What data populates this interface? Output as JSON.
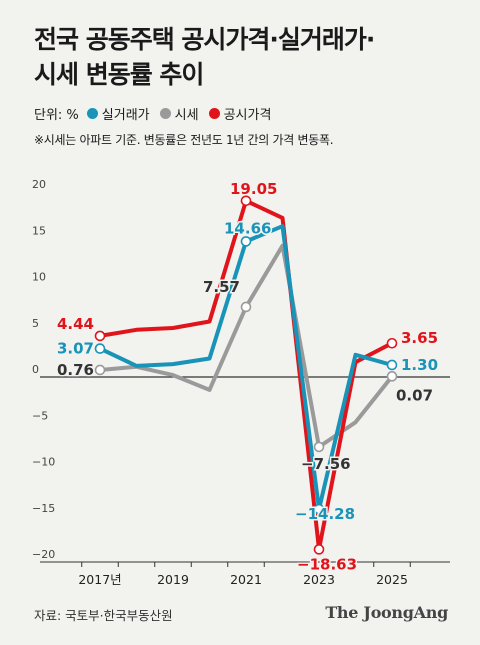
{
  "title_line1": "전국 공동주택 공시가격·실거래가·",
  "title_line2": "시세 변동률 추이",
  "legend": {
    "unit": "단위: %",
    "items": [
      {
        "label": "실거래가",
        "color": "#1a93b8"
      },
      {
        "label": "시세",
        "color": "#9a9a9a"
      },
      {
        "label": "공시가격",
        "color": "#e0151b"
      }
    ]
  },
  "note": "※시세는 아파트 기준. 변동률은 전년도 1년 간의 가격 변동폭.",
  "source": "자료: 국토부·한국부동산원",
  "brand": "The JoongAng",
  "chart_data": {
    "type": "line",
    "ylim": [
      -20,
      20
    ],
    "yticks": [
      "20",
      "15",
      "10",
      "5",
      "0",
      "−5",
      "−10",
      "−15",
      "−20"
    ],
    "ytick_values": [
      20,
      15,
      10,
      5,
      0,
      -5,
      -10,
      -15,
      -20
    ],
    "xlim": [
      2017,
      2025
    ],
    "xticks": [
      {
        "x": 2017,
        "label": "2017년"
      },
      {
        "x": 2019,
        "label": "2019"
      },
      {
        "x": 2021,
        "label": "2021"
      },
      {
        "x": 2023,
        "label": "2023"
      },
      {
        "x": 2025,
        "label": "2025"
      }
    ],
    "series": [
      {
        "key": "market",
        "color": "#9a9a9a",
        "points": [
          [
            2017,
            0.76
          ],
          [
            2018,
            1.1
          ],
          [
            2019,
            0.2
          ],
          [
            2020,
            -1.4
          ],
          [
            2021,
            7.57
          ],
          [
            2022,
            14.2
          ],
          [
            2023,
            -7.56
          ],
          [
            2024,
            -4.9
          ],
          [
            2025,
            0.07
          ]
        ],
        "markers": [
          {
            "x": 2017,
            "y": 0.76,
            "label": "0.76"
          },
          {
            "x": 2021,
            "y": 7.57,
            "label": "7.57"
          },
          {
            "x": 2023,
            "y": -7.56,
            "label": "−7.56"
          },
          {
            "x": 2025,
            "y": 0.07,
            "label": "0.07"
          }
        ]
      },
      {
        "key": "posted",
        "color": "#e0151b",
        "points": [
          [
            2017,
            4.44
          ],
          [
            2018,
            5.1
          ],
          [
            2019,
            5.3
          ],
          [
            2020,
            6.0
          ],
          [
            2021,
            19.05
          ],
          [
            2022,
            17.2
          ],
          [
            2023,
            -18.63
          ],
          [
            2024,
            1.6
          ],
          [
            2025,
            3.65
          ]
        ],
        "markers": [
          {
            "x": 2017,
            "y": 4.44,
            "label": "4.44"
          },
          {
            "x": 2021,
            "y": 19.05,
            "label": "19.05"
          },
          {
            "x": 2023,
            "y": -18.63,
            "label": "−18.63"
          },
          {
            "x": 2025,
            "y": 3.65,
            "label": "3.65"
          }
        ]
      },
      {
        "key": "actual",
        "color": "#1a93b8",
        "points": [
          [
            2017,
            3.07
          ],
          [
            2018,
            1.2
          ],
          [
            2019,
            1.4
          ],
          [
            2020,
            2.0
          ],
          [
            2021,
            14.66
          ],
          [
            2022,
            16.3
          ],
          [
            2023,
            -14.28
          ],
          [
            2024,
            2.4
          ],
          [
            2025,
            1.3
          ]
        ],
        "markers": [
          {
            "x": 2017,
            "y": 3.07,
            "label": "3.07"
          },
          {
            "x": 2021,
            "y": 14.66,
            "label": "14.66"
          },
          {
            "x": 2023,
            "y": -14.28,
            "label": "−14.28"
          },
          {
            "x": 2025,
            "y": 1.3,
            "label": "1.30"
          }
        ]
      }
    ]
  }
}
